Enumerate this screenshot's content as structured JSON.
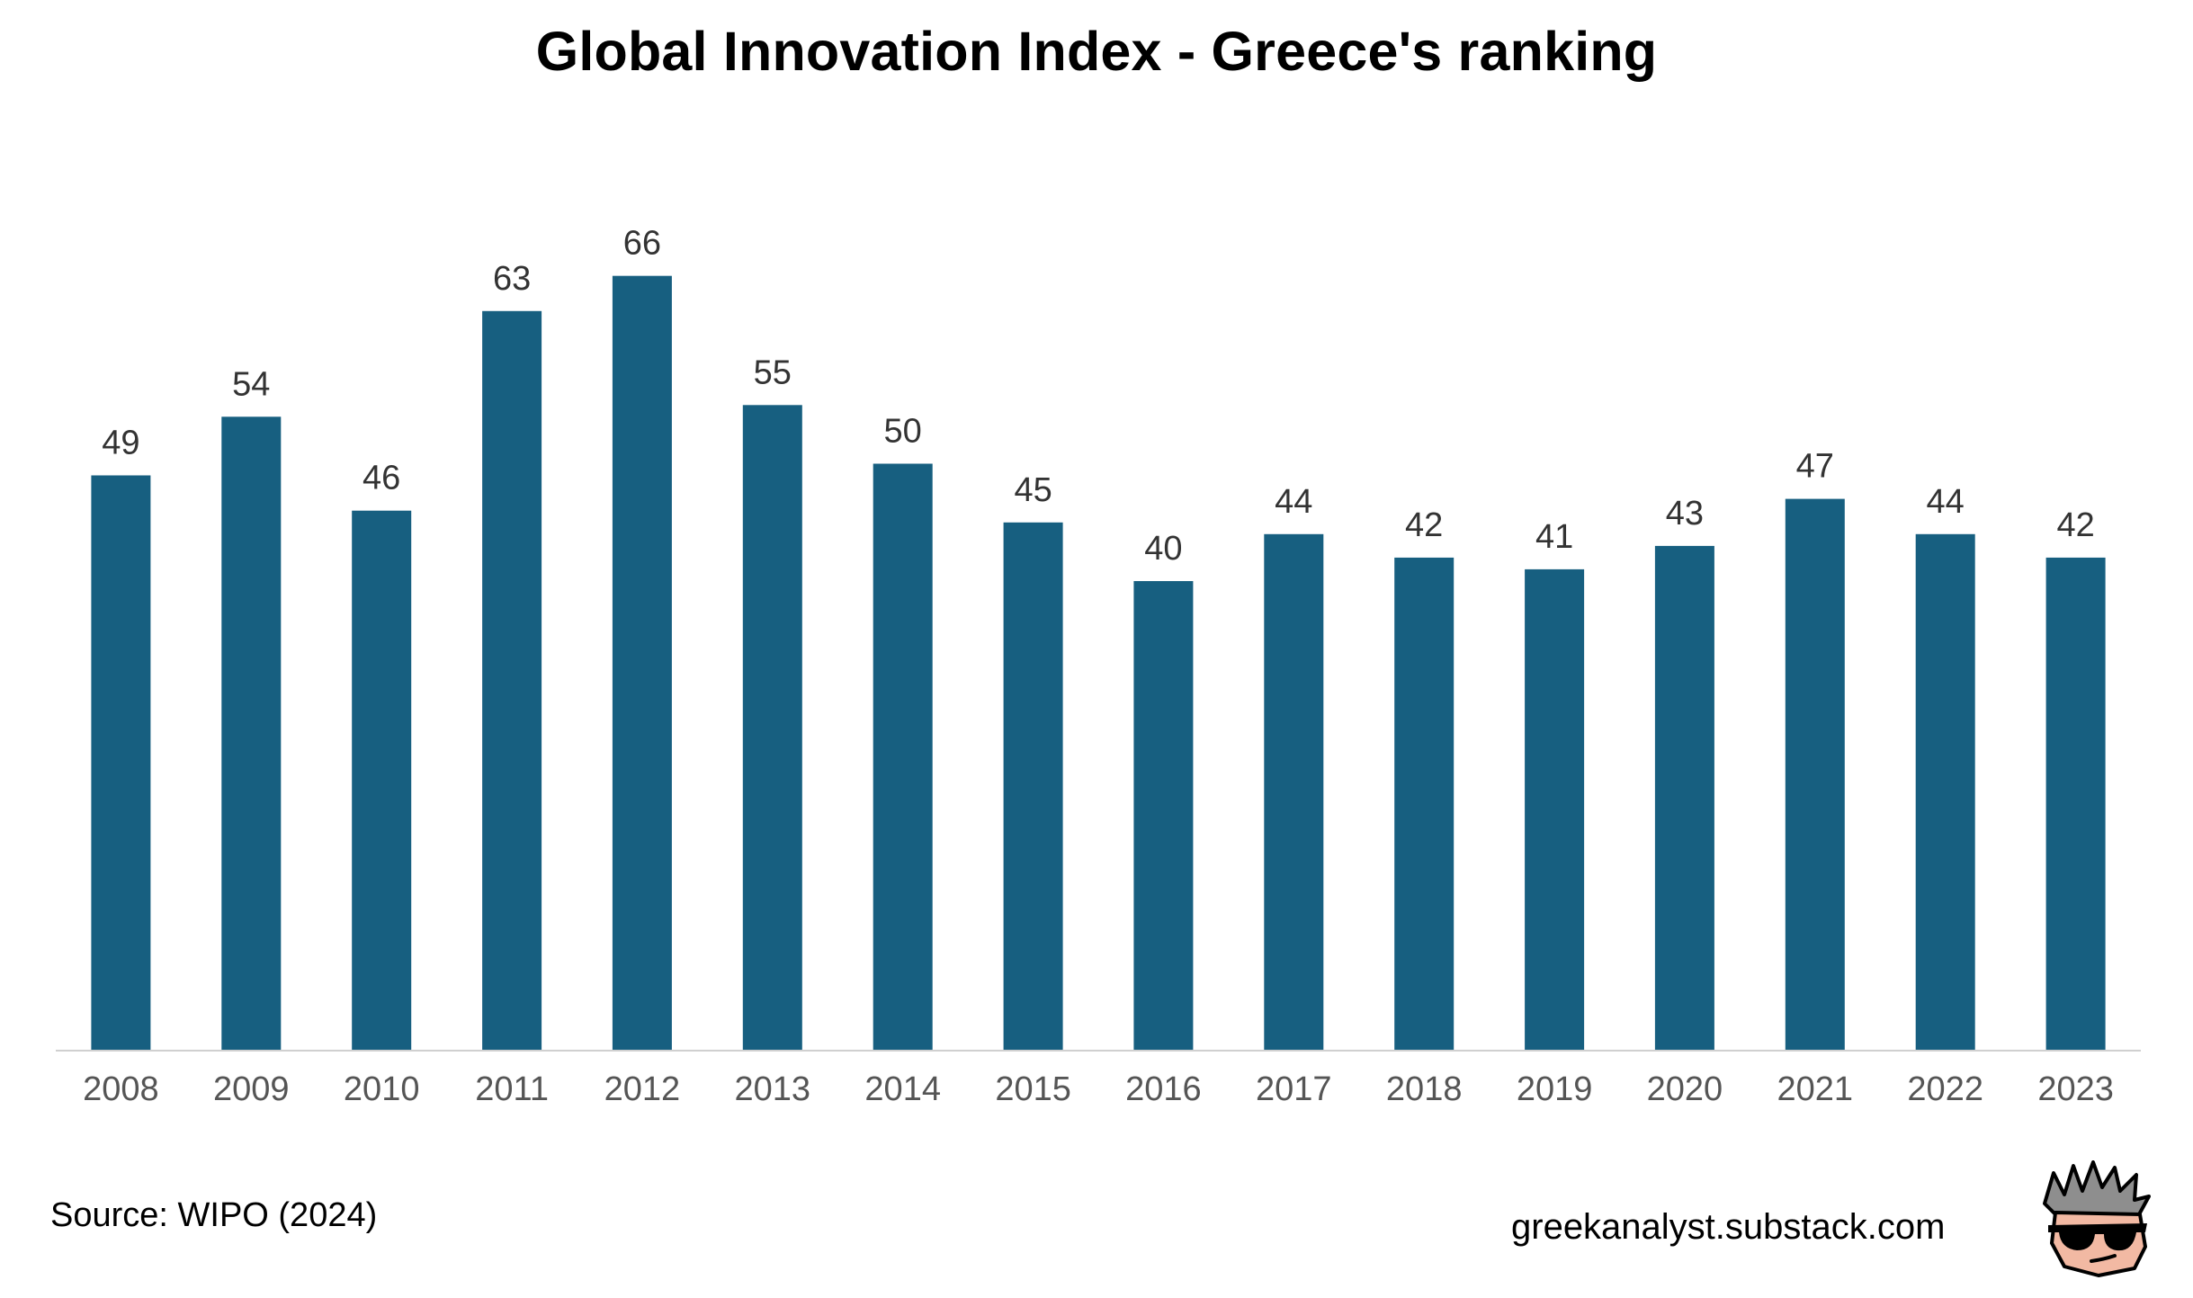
{
  "chart_data": {
    "type": "bar",
    "title": "Global Innovation Index - Greece's ranking",
    "categories": [
      "2008",
      "2009",
      "2010",
      "2011",
      "2012",
      "2013",
      "2014",
      "2015",
      "2016",
      "2017",
      "2018",
      "2019",
      "2020",
      "2021",
      "2022",
      "2023"
    ],
    "series": [
      {
        "values": [
          49,
          54,
          46,
          63,
          66,
          55,
          50,
          45,
          40,
          44,
          42,
          41,
          43,
          47,
          44,
          42
        ]
      }
    ],
    "xlabel": "",
    "ylabel": "",
    "ylim": [
      0,
      66
    ],
    "grid": false,
    "data_labels": true,
    "bar_color": "#175f80",
    "axis_color": "#d0d0d0"
  },
  "footer": {
    "source": "Source: WIPO (2024)",
    "site": "greekanalyst.substack.com"
  },
  "logo": {
    "icon": "sunglasses-face-icon"
  }
}
